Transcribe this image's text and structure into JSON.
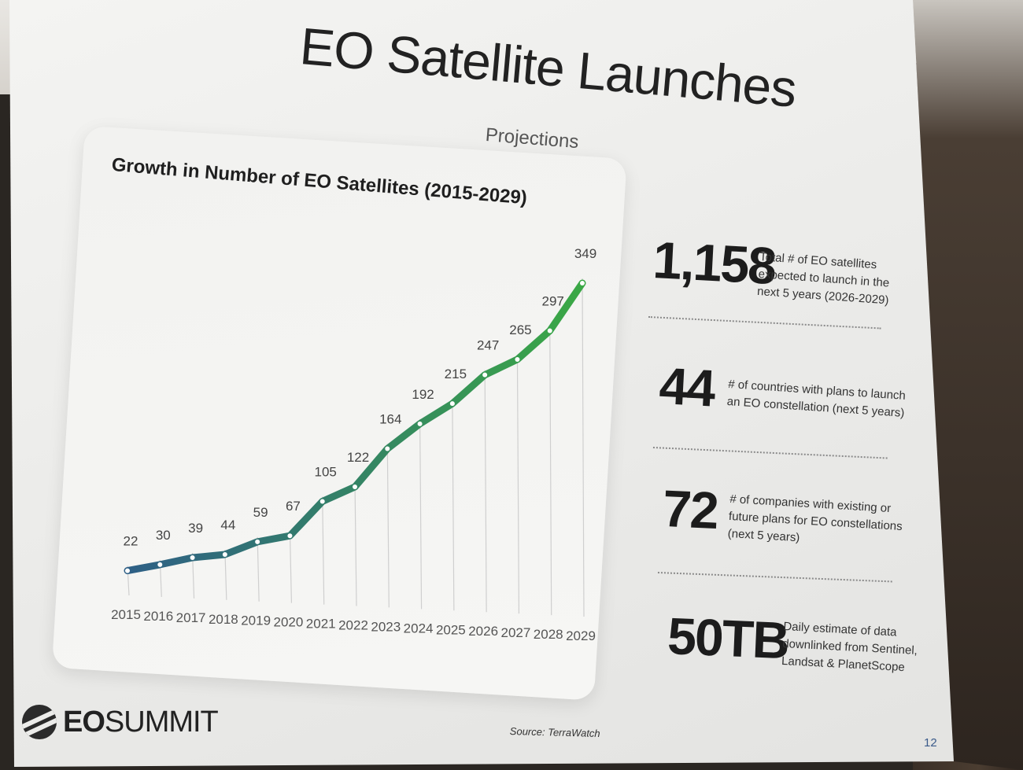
{
  "slide": {
    "title": "EO Satellite Launches",
    "subtitle": "Projections",
    "source": "Source: TerraWatch",
    "page_number": "12",
    "logo": {
      "icon": "eo-summit-globe-icon",
      "bold": "EO",
      "light": "SUMMIT"
    }
  },
  "chart_data": {
    "type": "line",
    "title": "Growth in Number of EO Satellites (2015-2029)",
    "xlabel": "",
    "ylabel": "",
    "categories": [
      "2015",
      "2016",
      "2017",
      "2018",
      "2019",
      "2020",
      "2021",
      "2022",
      "2023",
      "2024",
      "2025",
      "2026",
      "2027",
      "2028",
      "2029"
    ],
    "values": [
      22,
      30,
      39,
      44,
      59,
      67,
      105,
      122,
      164,
      192,
      215,
      247,
      265,
      297,
      349
    ],
    "ylim": [
      0,
      349
    ],
    "grid": "vertical",
    "line_color_start": "#2e5f86",
    "line_color_end": "#3aa845",
    "data_labels": true
  },
  "stats": [
    {
      "value": "1,158",
      "description": "Total # of EO satellites\nexpected to launch in the\nnext 5 years (2026-2029)"
    },
    {
      "value": "44",
      "description": "# of countries with plans to launch\nan EO constellation (next 5 years)"
    },
    {
      "value": "72",
      "description": "# of companies with existing or\nfuture plans for EO constellations\n(next 5 years)"
    },
    {
      "value": "50TB",
      "description": "Daily estimate of data\ndownlinked from Sentinel,\nLandsat & PlanetScope"
    }
  ]
}
